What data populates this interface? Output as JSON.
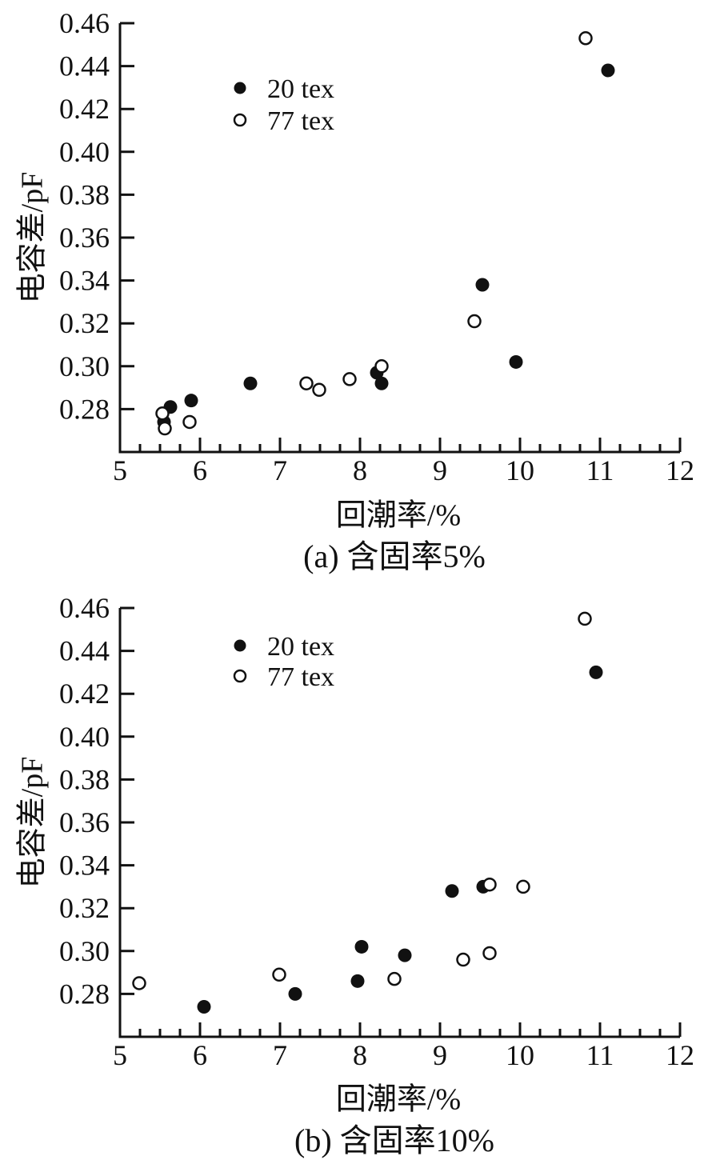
{
  "chart_data": [
    {
      "type": "scatter",
      "title": "(a) 含固率5%",
      "xlabel": "回潮率/%",
      "ylabel": "电容差/pF",
      "xlim": [
        5,
        12
      ],
      "ylim": [
        0.26,
        0.46
      ],
      "xticks": [
        5,
        6,
        7,
        8,
        9,
        10,
        11,
        12
      ],
      "yticks": [
        0.28,
        0.3,
        0.32,
        0.34,
        0.36,
        0.38,
        0.4,
        0.42,
        0.44,
        0.46
      ],
      "x_minor_step": 0.25,
      "grid": false,
      "legend_position": "upper-left",
      "legend": [
        {
          "label": "20 tex",
          "marker": "filled-circle"
        },
        {
          "label": "77 tex",
          "marker": "open-circle"
        }
      ],
      "series": [
        {
          "name": "20 tex",
          "marker": "filled-circle",
          "color": "#111111",
          "points": [
            [
              5.55,
              0.274
            ],
            [
              5.63,
              0.281
            ],
            [
              5.89,
              0.284
            ],
            [
              6.63,
              0.292
            ],
            [
              8.21,
              0.297
            ],
            [
              8.27,
              0.292
            ],
            [
              9.53,
              0.338
            ],
            [
              9.95,
              0.302
            ],
            [
              11.1,
              0.438
            ]
          ]
        },
        {
          "name": "77 tex",
          "marker": "open-circle",
          "color": "#111111",
          "points": [
            [
              5.53,
              0.278
            ],
            [
              5.56,
              0.271
            ],
            [
              5.87,
              0.274
            ],
            [
              7.33,
              0.292
            ],
            [
              7.49,
              0.289
            ],
            [
              7.87,
              0.294
            ],
            [
              8.27,
              0.3
            ],
            [
              9.43,
              0.321
            ],
            [
              10.82,
              0.453
            ]
          ]
        }
      ]
    },
    {
      "type": "scatter",
      "title": "(b) 含固率10%",
      "xlabel": "回潮率/%",
      "ylabel": "电容差/pF",
      "xlim": [
        5,
        12
      ],
      "ylim": [
        0.26,
        0.46
      ],
      "xticks": [
        5,
        6,
        7,
        8,
        9,
        10,
        11,
        12
      ],
      "yticks": [
        0.28,
        0.3,
        0.32,
        0.34,
        0.36,
        0.38,
        0.4,
        0.42,
        0.44,
        0.46
      ],
      "x_minor_step": 0.25,
      "grid": false,
      "legend_position": "upper-left",
      "legend": [
        {
          "label": "20 tex",
          "marker": "filled-circle"
        },
        {
          "label": "77 tex",
          "marker": "open-circle"
        }
      ],
      "series": [
        {
          "name": "20 tex",
          "marker": "filled-circle",
          "color": "#111111",
          "points": [
            [
              6.05,
              0.274
            ],
            [
              7.19,
              0.28
            ],
            [
              7.97,
              0.286
            ],
            [
              8.02,
              0.302
            ],
            [
              8.56,
              0.298
            ],
            [
              9.15,
              0.328
            ],
            [
              9.54,
              0.33
            ],
            [
              10.95,
              0.43
            ]
          ]
        },
        {
          "name": "77 tex",
          "marker": "open-circle",
          "color": "#111111",
          "points": [
            [
              5.24,
              0.285
            ],
            [
              6.99,
              0.289
            ],
            [
              8.43,
              0.287
            ],
            [
              9.29,
              0.296
            ],
            [
              9.62,
              0.299
            ],
            [
              9.62,
              0.331
            ],
            [
              10.04,
              0.33
            ],
            [
              10.81,
              0.455
            ]
          ]
        }
      ]
    }
  ],
  "style": {
    "ink_color": "#111111",
    "background": "#ffffff"
  }
}
